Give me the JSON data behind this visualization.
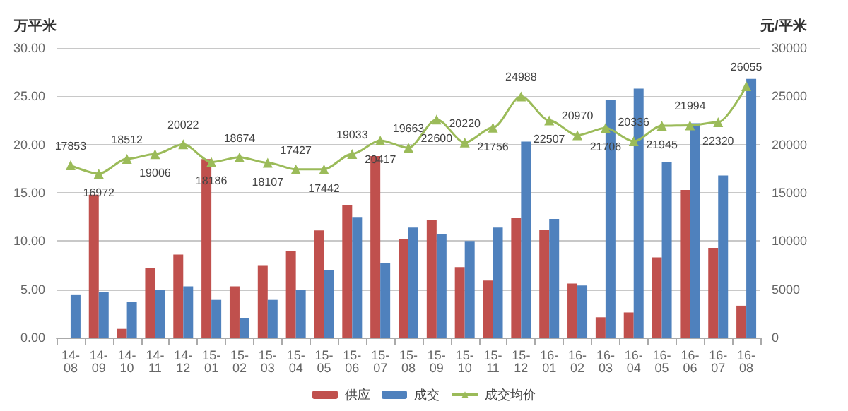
{
  "chart_data": {
    "type": "bar",
    "categories": [
      "14-08",
      "14-09",
      "14-10",
      "14-11",
      "14-12",
      "15-01",
      "15-02",
      "15-03",
      "15-04",
      "15-05",
      "15-06",
      "15-07",
      "15-08",
      "15-09",
      "15-10",
      "15-11",
      "15-12",
      "16-01",
      "16-02",
      "16-03",
      "16-04",
      "16-05",
      "16-06",
      "16-07",
      "16-08"
    ],
    "series": [
      {
        "name": "供应",
        "color": "#c0504d",
        "values": [
          null,
          14.8,
          0.9,
          7.2,
          8.6,
          18.5,
          5.3,
          7.5,
          9.0,
          11.1,
          13.7,
          18.8,
          10.2,
          12.2,
          7.3,
          5.9,
          12.4,
          11.2,
          5.6,
          2.1,
          2.6,
          8.3,
          15.3,
          9.3,
          3.3
        ]
      },
      {
        "name": "成交",
        "color": "#4f81bd",
        "values": [
          4.4,
          4.7,
          3.7,
          4.9,
          5.3,
          3.9,
          2.0,
          3.9,
          4.9,
          7.0,
          12.5,
          7.7,
          11.4,
          10.7,
          10.0,
          11.4,
          20.3,
          12.3,
          5.4,
          24.6,
          25.8,
          18.2,
          22.2,
          16.8,
          26.8
        ]
      },
      {
        "name": "成交均价",
        "type": "line",
        "axis": "y2",
        "color": "#9bbb59",
        "marker": "triangle",
        "values": [
          17853,
          16972,
          18512,
          19006,
          20022,
          18186,
          18674,
          18107,
          17427,
          17442,
          19033,
          20417,
          19663,
          22600,
          20220,
          21756,
          24988,
          22507,
          20970,
          21706,
          20336,
          21945,
          21994,
          22320,
          26055
        ],
        "value_labels": [
          "17853",
          "16972",
          "18512",
          "19006",
          "20022",
          "18186",
          "18674",
          "18107",
          "17427",
          "17442",
          "19033",
          "20417",
          "19663",
          "22600",
          "20220",
          "21756",
          "24988",
          "22507",
          "20970",
          "21706",
          "20336",
          "21945",
          "21994",
          "22320",
          "26055"
        ]
      }
    ],
    "ylabel": "万平米",
    "y2label": "元/平米",
    "ylim": [
      0,
      30
    ],
    "yticks": [
      {
        "value": 0,
        "label": "0.00"
      },
      {
        "value": 5,
        "label": "5.00"
      },
      {
        "value": 10,
        "label": "10.00"
      },
      {
        "value": 15,
        "label": "15.00"
      },
      {
        "value": 20,
        "label": "20.00"
      },
      {
        "value": 25,
        "label": "25.00"
      },
      {
        "value": 30,
        "label": "30.00"
      }
    ],
    "y2lim": [
      0,
      30000
    ],
    "y2ticks": [
      0,
      5000,
      10000,
      15000,
      20000,
      25000,
      30000
    ],
    "grid": "y",
    "legend": "bottom"
  }
}
